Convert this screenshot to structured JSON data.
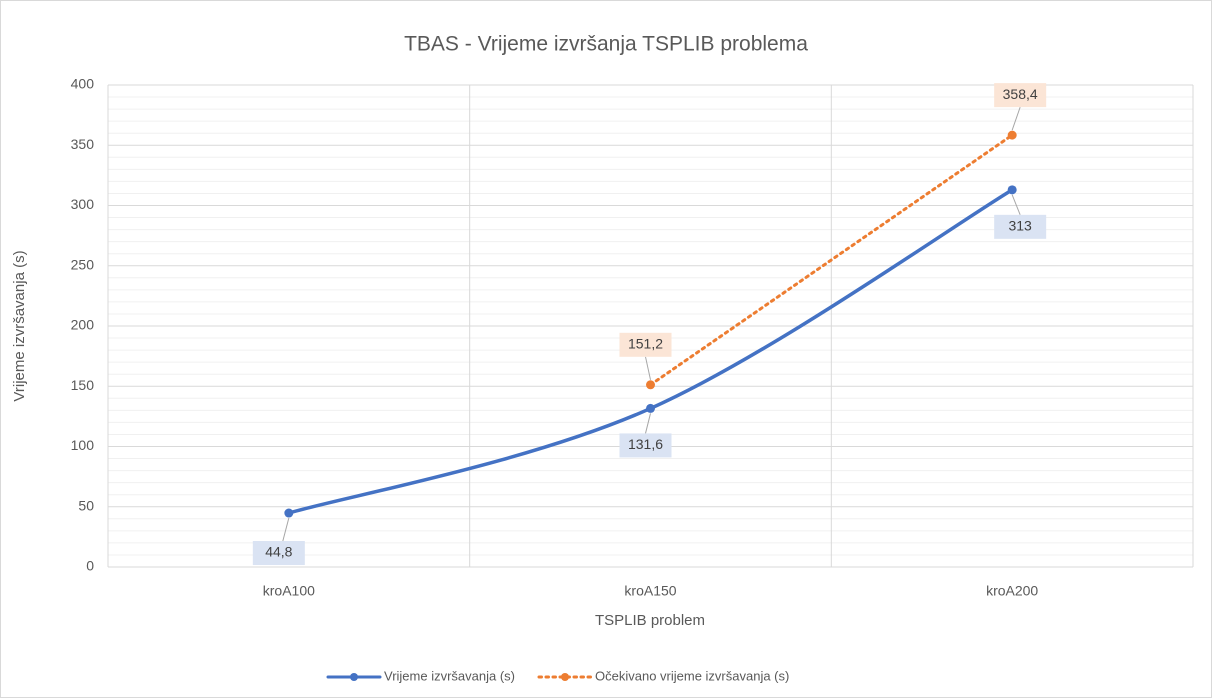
{
  "chart_data": {
    "type": "line",
    "title": "TBAS - Vrijeme izvršanja TSPLIB problema",
    "x_label": "TSPLIB problem",
    "y_label": "Vrijeme izvršavanja (s)",
    "categories": [
      "kroA100",
      "kroA150",
      "kroA200"
    ],
    "series": [
      {
        "name": "Vrijeme izvršavanja (s)",
        "color": "#4472c4",
        "style": "solid",
        "smooth": true,
        "values": [
          44.8,
          131.6,
          313
        ],
        "value_labels": [
          "44,8",
          "131,6",
          "313"
        ],
        "label_color": "#dae3f3"
      },
      {
        "name": "Očekivano vrijeme izvršavanja (s)",
        "color": "#ed7d31",
        "style": "dotted",
        "smooth": false,
        "values": [
          null,
          151.2,
          358.4
        ],
        "value_labels": [
          null,
          "151,2",
          "358,4"
        ],
        "label_color": "#fbe5d6"
      }
    ],
    "ylim": [
      0,
      400
    ],
    "yticks": [
      0,
      50,
      100,
      150,
      200,
      250,
      300,
      350,
      400
    ],
    "y_minor_ticks": [
      10,
      20,
      30,
      40,
      60,
      70,
      80,
      90,
      110,
      120,
      130,
      140,
      160,
      170,
      180,
      190,
      210,
      220,
      230,
      240,
      260,
      270,
      280,
      290,
      310,
      320,
      330,
      340,
      360,
      370,
      380,
      390
    ],
    "grid": true,
    "legend": "bottom"
  }
}
